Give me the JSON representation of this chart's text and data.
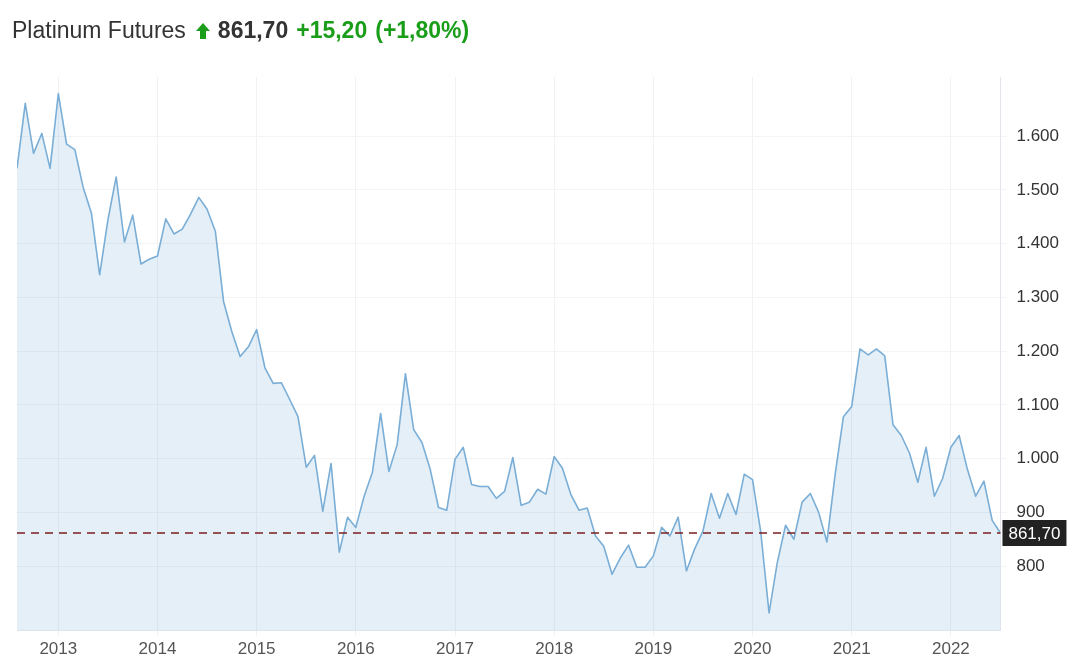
{
  "chart_data": {
    "type": "area",
    "title": "Platinum Futures",
    "annotations": [
      "861,70",
      "+15,20",
      "(+1,80%)"
    ],
    "x": [
      "2012-08",
      "2012-09",
      "2012-10",
      "2012-11",
      "2012-12",
      "2013-01",
      "2013-02",
      "2013-03",
      "2013-04",
      "2013-05",
      "2013-06",
      "2013-07",
      "2013-08",
      "2013-09",
      "2013-10",
      "2013-11",
      "2013-12",
      "2014-01",
      "2014-02",
      "2014-03",
      "2014-04",
      "2014-05",
      "2014-06",
      "2014-07",
      "2014-08",
      "2014-09",
      "2014-10",
      "2014-11",
      "2014-12",
      "2015-01",
      "2015-02",
      "2015-03",
      "2015-04",
      "2015-05",
      "2015-06",
      "2015-07",
      "2015-08",
      "2015-09",
      "2015-10",
      "2015-11",
      "2015-12",
      "2016-01",
      "2016-02",
      "2016-03",
      "2016-04",
      "2016-05",
      "2016-06",
      "2016-07",
      "2016-08",
      "2016-09",
      "2016-10",
      "2016-11",
      "2016-12",
      "2017-01",
      "2017-02",
      "2017-03",
      "2017-04",
      "2017-05",
      "2017-06",
      "2017-07",
      "2017-08",
      "2017-09",
      "2017-10",
      "2017-11",
      "2017-12",
      "2018-01",
      "2018-02",
      "2018-03",
      "2018-04",
      "2018-05",
      "2018-06",
      "2018-07",
      "2018-08",
      "2018-09",
      "2018-10",
      "2018-11",
      "2018-12",
      "2019-01",
      "2019-02",
      "2019-03",
      "2019-04",
      "2019-05",
      "2019-06",
      "2019-07",
      "2019-08",
      "2019-09",
      "2019-10",
      "2019-11",
      "2019-12",
      "2020-01",
      "2020-02",
      "2020-03",
      "2020-04",
      "2020-05",
      "2020-06",
      "2020-07",
      "2020-08",
      "2020-09",
      "2020-10",
      "2020-11",
      "2020-12",
      "2021-01",
      "2021-02",
      "2021-03",
      "2021-04",
      "2021-05",
      "2021-06",
      "2021-07",
      "2021-08",
      "2021-09",
      "2021-10",
      "2021-11",
      "2021-12",
      "2022-01",
      "2022-02",
      "2022-03",
      "2022-04",
      "2022-05",
      "2022-06",
      "2022-07"
    ],
    "series": [
      {
        "color": "#7aaed6",
        "values": [
          1540,
          1661,
          1568,
          1605,
          1540,
          1679,
          1585,
          1575,
          1505,
          1457,
          1342,
          1444,
          1524,
          1403,
          1453,
          1362,
          1371,
          1377,
          1446,
          1418,
          1427,
          1455,
          1486,
          1464,
          1423,
          1292,
          1236,
          1190,
          1208,
          1240,
          1169,
          1140,
          1141,
          1110,
          1078,
          984,
          1006,
          902,
          991,
          826,
          891,
          872,
          930,
          974,
          1084,
          976,
          1026,
          1158,
          1054,
          1030,
          980,
          909,
          904,
          999,
          1021,
          952,
          948,
          948,
          926,
          939,
          1002,
          913,
          919,
          943,
          934,
          1004,
          982,
          934,
          904,
          908,
          856,
          837,
          785,
          815,
          839,
          798,
          798,
          819,
          872,
          856,
          891,
          791,
          832,
          865,
          935,
          889,
          935,
          896,
          971,
          961,
          863,
          713,
          807,
          876,
          850,
          919,
          935,
          900,
          845,
          971,
          1078,
          1097,
          1204,
          1193,
          1204,
          1191,
          1063,
          1043,
          1010,
          956,
          1021,
          930,
          963,
          1021,
          1043,
          980,
          930,
          958,
          885,
          861.7
        ]
      }
    ],
    "xlim": [
      "2012-08",
      "2022-07"
    ],
    "xticks": [
      "2013",
      "2014",
      "2015",
      "2016",
      "2017",
      "2018",
      "2019",
      "2020",
      "2021",
      "2022"
    ],
    "ylim": [
      680,
      1710
    ],
    "yticks": [
      800,
      900,
      {
        "value": 1000,
        "label": "1.000"
      },
      {
        "value": 1100,
        "label": "1.100"
      },
      {
        "value": 1200,
        "label": "1.200"
      },
      {
        "value": 1300,
        "label": "1.300"
      },
      {
        "value": 1400,
        "label": "1.400"
      },
      {
        "value": 1500,
        "label": "1.500"
      },
      {
        "value": 1600,
        "label": "1.600"
      }
    ],
    "ref_lines": [
      {
        "axis": "y",
        "value": 861.7,
        "label": "861,70",
        "color": "#7a1f1f",
        "line_style": "dashed"
      }
    ],
    "grid": true,
    "legend": false,
    "marker": "none",
    "line_style": "solid"
  }
}
